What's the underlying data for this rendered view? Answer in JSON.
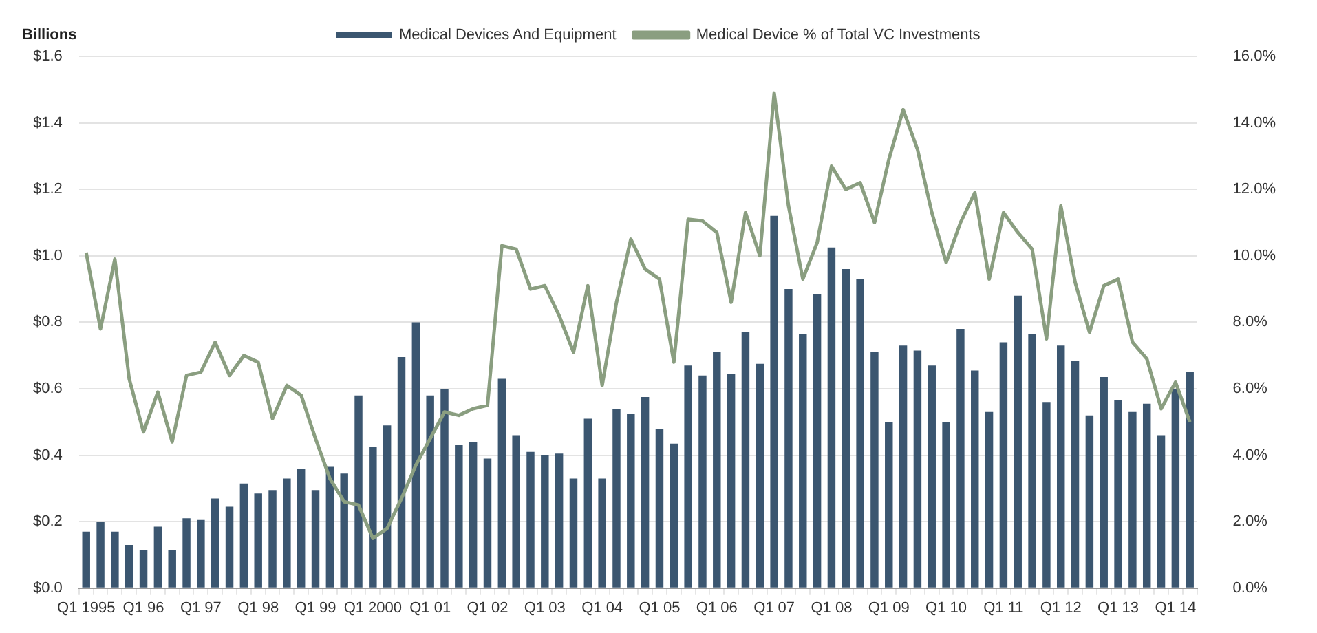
{
  "chart_data": {
    "type": "bar",
    "ylabel": "Billions",
    "categories": [
      "Q1 1995",
      null,
      null,
      null,
      "Q1 96",
      null,
      null,
      null,
      "Q1 97",
      null,
      null,
      null,
      "Q1 98",
      null,
      null,
      null,
      "Q1 99",
      null,
      null,
      null,
      "Q1 2000",
      null,
      null,
      null,
      "Q1 01",
      null,
      null,
      null,
      "Q1 02",
      null,
      null,
      null,
      "Q1 03",
      null,
      null,
      null,
      "Q1 04",
      null,
      null,
      null,
      "Q1 05",
      null,
      null,
      null,
      "Q1 06",
      null,
      null,
      null,
      "Q1 07",
      null,
      null,
      null,
      "Q1 08",
      null,
      null,
      null,
      "Q1 09",
      null,
      null,
      null,
      "Q1 10",
      null,
      null,
      null,
      "Q1 11",
      null,
      null,
      null,
      "Q1 12",
      null,
      null,
      null,
      "Q1 13",
      null,
      null,
      null,
      "Q1 14",
      null
    ],
    "series": [
      {
        "name": "Medical Devices And Equipment",
        "color": "#3b5670",
        "values": [
          0.17,
          0.2,
          0.17,
          0.13,
          0.115,
          0.185,
          0.115,
          0.21,
          0.205,
          0.27,
          0.245,
          0.315,
          0.285,
          0.295,
          0.33,
          0.36,
          0.295,
          0.365,
          0.345,
          0.58,
          0.425,
          0.49,
          0.695,
          0.8,
          0.58,
          0.6,
          0.43,
          0.44,
          0.39,
          0.63,
          0.46,
          0.41,
          0.4,
          0.405,
          0.33,
          0.51,
          0.33,
          0.54,
          0.525,
          0.575,
          0.48,
          0.435,
          0.67,
          0.64,
          0.71,
          0.645,
          0.77,
          0.675,
          1.12,
          0.9,
          0.765,
          0.885,
          1.025,
          0.96,
          0.93,
          0.71,
          0.5,
          0.73,
          0.715,
          0.67,
          0.5,
          0.78,
          0.655,
          0.53,
          0.74,
          0.88,
          0.765,
          0.56,
          0.73,
          0.685,
          0.52,
          0.635,
          0.565,
          0.53,
          0.555,
          0.46,
          0.6,
          0.65
        ]
      },
      {
        "name": "Medical Device % of Total VC Investments",
        "type": "line",
        "axis": "y2",
        "color": "#8a9e80",
        "values": [
          10.1,
          7.8,
          9.9,
          6.3,
          4.7,
          5.9,
          4.4,
          6.4,
          6.5,
          7.4,
          6.4,
          7.0,
          6.8,
          5.1,
          6.1,
          5.8,
          4.5,
          3.3,
          2.6,
          2.5,
          1.5,
          1.8,
          2.7,
          3.7,
          4.5,
          5.3,
          5.2,
          5.4,
          5.5,
          10.3,
          10.2,
          9.0,
          9.1,
          8.2,
          7.1,
          9.1,
          6.1,
          8.6,
          10.5,
          9.6,
          9.3,
          6.8,
          11.1,
          11.05,
          10.7,
          8.6,
          11.3,
          10.0,
          14.9,
          11.5,
          9.3,
          10.4,
          12.7,
          12.0,
          12.2,
          11.0,
          12.9,
          14.4,
          13.2,
          11.3,
          9.8,
          11.0,
          11.9,
          9.3,
          11.3,
          10.7,
          10.2,
          7.5,
          11.5,
          9.2,
          7.7,
          9.1,
          9.3,
          7.4,
          6.9,
          5.4,
          6.2,
          5.0
        ]
      }
    ],
    "ylim": [
      0,
      1.6
    ],
    "yticks": [
      {
        "value": 0,
        "label": "$0.0"
      },
      {
        "value": 0.2,
        "label": "$0.2"
      },
      {
        "value": 0.4,
        "label": "$0.4"
      },
      {
        "value": 0.6,
        "label": "$0.6"
      },
      {
        "value": 0.8,
        "label": "$0.8"
      },
      {
        "value": 1.0,
        "label": "$1.0"
      },
      {
        "value": 1.2,
        "label": "$1.2"
      },
      {
        "value": 1.4,
        "label": "$1.4"
      },
      {
        "value": 1.6,
        "label": "$1.6"
      }
    ],
    "y2lim": [
      0,
      16
    ],
    "y2ticks": [
      {
        "value": 0,
        "label": "0.0%"
      },
      {
        "value": 2,
        "label": "2.0%"
      },
      {
        "value": 4,
        "label": "4.0%"
      },
      {
        "value": 6,
        "label": "6.0%"
      },
      {
        "value": 8,
        "label": "8.0%"
      },
      {
        "value": 10,
        "label": "10.0%"
      },
      {
        "value": 12,
        "label": "12.0%"
      },
      {
        "value": 14,
        "label": "14.0%"
      },
      {
        "value": 16,
        "label": "16.0%"
      }
    ],
    "grid": "y",
    "legend": "top",
    "marker": "none",
    "line_style": "solid"
  }
}
